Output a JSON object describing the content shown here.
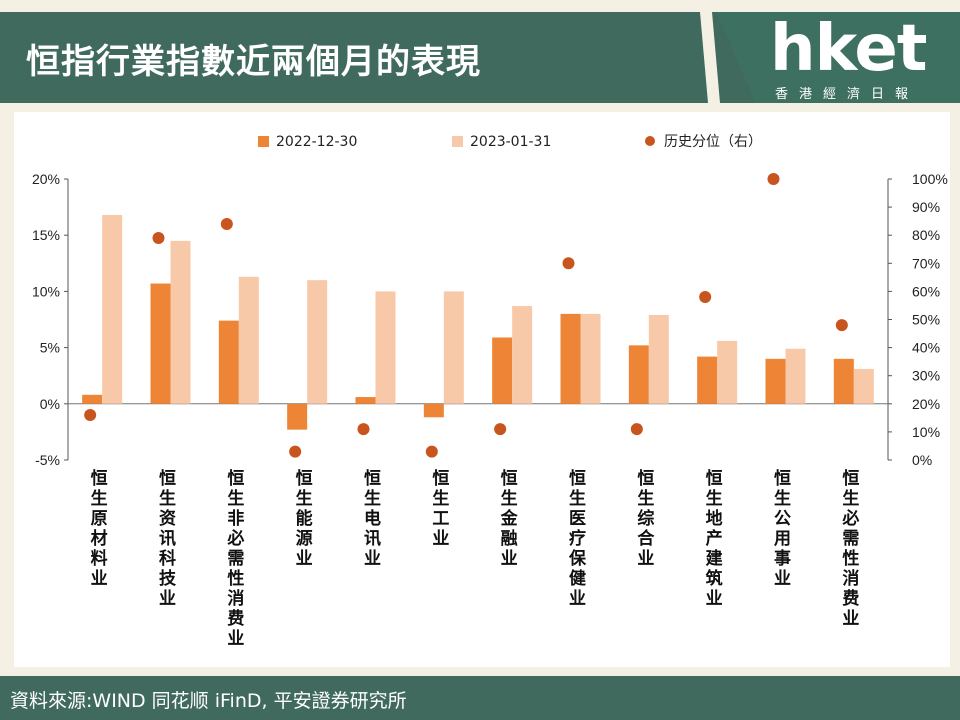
{
  "header": {
    "title": "恒指行業指數近兩個月的表現",
    "logo_text": "hket",
    "logo_subtitle": "香港經濟日報"
  },
  "footer": {
    "source": "資料來源:WIND 同花顺 iFinD, 平安證券研究所"
  },
  "colors": {
    "series_2022": "#ee8536",
    "series_2023": "#f8c9a8",
    "percentile": "#c8541e",
    "band": "#3f6a5d"
  },
  "chart_data": {
    "type": "bar",
    "categories": [
      "恒生原材料业",
      "恒生资讯科技业",
      "恒生非必需性消费业",
      "恒生能源业",
      "恒生电讯业",
      "恒生工业",
      "恒生金融业",
      "恒生医疗保健业",
      "恒生综合业",
      "恒生地产建筑业",
      "恒生公用事业",
      "恒生必需性消费业"
    ],
    "series": [
      {
        "name": "2022-12-30",
        "type": "bar",
        "axis": "left",
        "values": [
          0.8,
          10.7,
          7.4,
          -2.3,
          0.6,
          -1.2,
          5.9,
          8.0,
          5.2,
          4.2,
          4.0,
          4.0
        ]
      },
      {
        "name": "2023-01-31",
        "type": "bar",
        "axis": "left",
        "values": [
          16.8,
          14.5,
          11.3,
          11.0,
          10.0,
          10.0,
          8.7,
          8.0,
          7.9,
          5.6,
          4.9,
          3.1
        ]
      },
      {
        "name": "历史分位（右）",
        "type": "scatter",
        "axis": "right",
        "values": [
          16,
          79,
          84,
          3,
          11,
          3,
          11,
          70,
          11,
          58,
          100,
          48
        ]
      }
    ],
    "y_left": {
      "min": -5,
      "max": 20,
      "ticks": [
        "-5%",
        "0%",
        "5%",
        "10%",
        "15%",
        "20%"
      ]
    },
    "y_right": {
      "min": 0,
      "max": 100,
      "ticks": [
        "0%",
        "10%",
        "20%",
        "30%",
        "40%",
        "50%",
        "60%",
        "70%",
        "80%",
        "90%",
        "100%"
      ]
    },
    "legend_position": "top",
    "grid": false
  }
}
